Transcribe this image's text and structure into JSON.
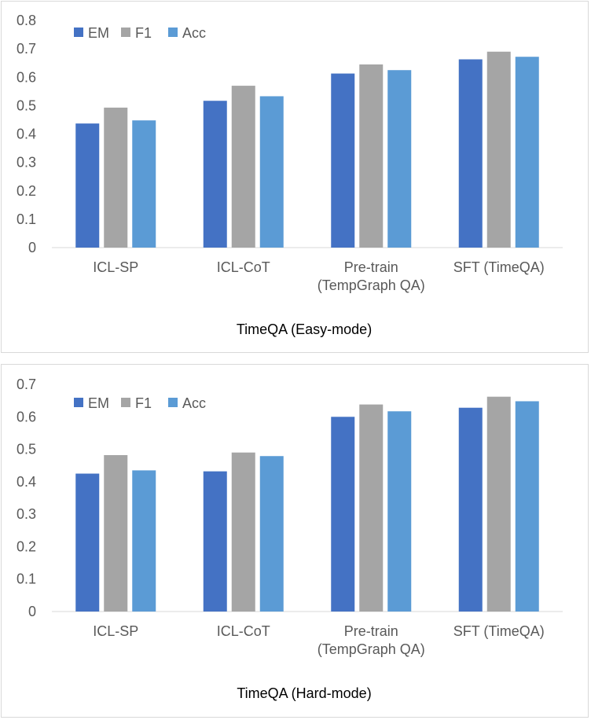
{
  "chart_data": [
    {
      "type": "bar",
      "title": "",
      "xlabel": "TimeQA (Easy-mode)",
      "ylabel": "",
      "ylim": [
        0,
        0.8
      ],
      "yticks": [
        "0",
        "0.1",
        "0.2",
        "0.3",
        "0.4",
        "0.5",
        "0.6",
        "0.7",
        "0.8"
      ],
      "grid": false,
      "legend": "top-left",
      "categories": [
        [
          "ICL-SP"
        ],
        [
          "ICL-CoT"
        ],
        [
          "Pre-train",
          "(TempGraph QA)"
        ],
        [
          "SFT (TimeQA)"
        ]
      ],
      "series": [
        {
          "name": "EM",
          "color": "#4472C4",
          "values": [
            0.437,
            0.517,
            0.613,
            0.663
          ]
        },
        {
          "name": "F1",
          "color": "#A5A5A5",
          "values": [
            0.493,
            0.57,
            0.645,
            0.69
          ]
        },
        {
          "name": "Acc",
          "color": "#5B9BD5",
          "values": [
            0.448,
            0.533,
            0.625,
            0.672
          ]
        }
      ]
    },
    {
      "type": "bar",
      "title": "",
      "xlabel": "TimeQA (Hard-mode)",
      "ylabel": "",
      "ylim": [
        0,
        0.7
      ],
      "yticks": [
        "0",
        "0.1",
        "0.2",
        "0.3",
        "0.4",
        "0.5",
        "0.6",
        "0.7"
      ],
      "grid": false,
      "legend": "top-left",
      "categories": [
        [
          "ICL-SP"
        ],
        [
          "ICL-CoT"
        ],
        [
          "Pre-train",
          "(TempGraph QA)"
        ],
        [
          "SFT (TimeQA)"
        ]
      ],
      "series": [
        {
          "name": "EM",
          "color": "#4472C4",
          "values": [
            0.425,
            0.432,
            0.6,
            0.628
          ]
        },
        {
          "name": "F1",
          "color": "#A5A5A5",
          "values": [
            0.482,
            0.49,
            0.638,
            0.662
          ]
        },
        {
          "name": "Acc",
          "color": "#5B9BD5",
          "values": [
            0.435,
            0.479,
            0.617,
            0.648
          ]
        }
      ]
    }
  ]
}
